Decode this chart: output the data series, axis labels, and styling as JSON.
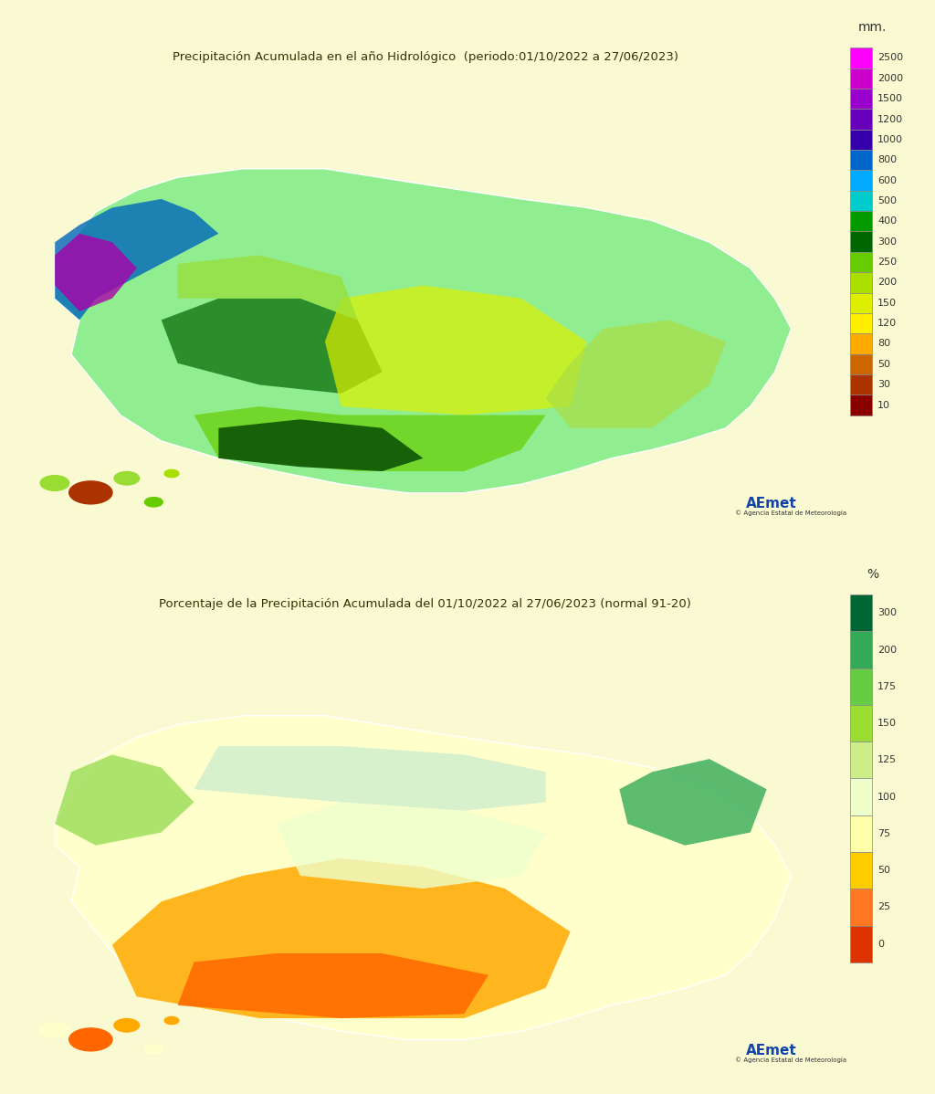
{
  "title1": "Precipitación Acumulada en el año Hidrológico  (periodo:01/10/2022 a 27/06/2023)",
  "title2": "Porcentaje de la Precipitación Acumulada del 01/10/2022 al 27/06/2023 (normal 91-20)",
  "colorbar1_label": "mm.",
  "colorbar1_values": [
    2500,
    2000,
    1500,
    1200,
    1000,
    800,
    600,
    500,
    400,
    300,
    250,
    200,
    150,
    120,
    80,
    50,
    30,
    10
  ],
  "colorbar1_colors": [
    "#FF00FF",
    "#CC00CC",
    "#9900CC",
    "#6600BB",
    "#3300AA",
    "#0066CC",
    "#00AAFF",
    "#00CCCC",
    "#009900",
    "#006600",
    "#66CC00",
    "#AADD00",
    "#DDEE00",
    "#FFEE00",
    "#FFAA00",
    "#CC6600",
    "#AA3300",
    "#880000"
  ],
  "colorbar2_label": "%",
  "colorbar2_values": [
    300,
    200,
    175,
    150,
    125,
    100,
    75,
    50,
    25,
    0
  ],
  "colorbar2_colors": [
    "#006633",
    "#33AA55",
    "#66CC44",
    "#99DD33",
    "#CCEE88",
    "#EEFFCC",
    "#FFFFAA",
    "#FFCC00",
    "#FF7722",
    "#DD3300"
  ],
  "bg_color": "#FAFAD2",
  "map_bg": "#ADD8E6",
  "land_color": "#D3D3D3",
  "border_color": "#C8C820",
  "panel_bg": "#FAFAD2",
  "footer_text": "© Agencia Estatal de Meteorología",
  "outer_bg": "#FAFAD2"
}
